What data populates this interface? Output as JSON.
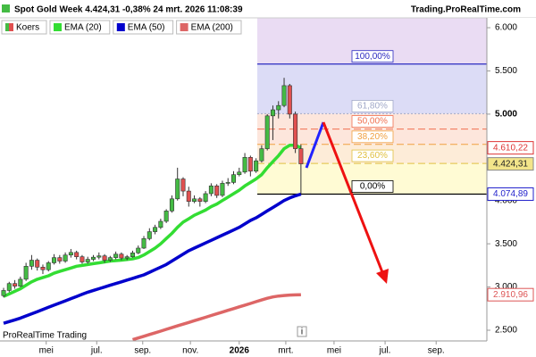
{
  "chart_data": {
    "type": "candlestick",
    "title": "Spot  Gold Week 4.424,31 -0,38% 24 mrt. 2026 11:08:39",
    "source": "Trading.ProRealTime.com",
    "watermark": "ProRealTime Trading",
    "info": "i",
    "xlim": [
      -0.64,
      86.14
    ],
    "xticks": [
      {
        "value": 7.6,
        "label": "mei"
      },
      {
        "value": 16.6,
        "label": "jul."
      },
      {
        "value": 24.8,
        "label": "sep."
      },
      {
        "value": 33.3,
        "label": "nov."
      },
      {
        "value": 42.0,
        "label": "2026"
      },
      {
        "value": 50.3,
        "label": "mrt."
      },
      {
        "value": 58.9,
        "label": "mei"
      },
      {
        "value": 68.0,
        "label": "jul."
      },
      {
        "value": 77.1,
        "label": "sep."
      }
    ],
    "ylim": [
      2376,
      6114
    ],
    "yticks": [
      {
        "value": 2500,
        "label": "2.500"
      },
      {
        "value": 3000,
        "label": "3.000"
      },
      {
        "value": 3500,
        "label": "3.500"
      },
      {
        "value": 4000,
        "label": "4.000"
      },
      {
        "value": 5000,
        "label": "5.000"
      },
      {
        "value": 5500,
        "label": "5.500"
      },
      {
        "value": 6000,
        "label": "6.000"
      }
    ],
    "price": {
      "name": "Koers",
      "up_color": "#44bb44",
      "down_color": "#e05050",
      "last": {
        "value": 4424.31,
        "label": "4.424,31"
      },
      "candles": [
        [
          2900,
          2990,
          2880,
          2960
        ],
        [
          2960,
          3060,
          2940,
          3040
        ],
        [
          3040,
          3080,
          2980,
          3010
        ],
        [
          3010,
          3120,
          3000,
          3090
        ],
        [
          3090,
          3280,
          3070,
          3240
        ],
        [
          3240,
          3370,
          3200,
          3310
        ],
        [
          3310,
          3330,
          3190,
          3230
        ],
        [
          3230,
          3260,
          3150,
          3200
        ],
        [
          3200,
          3300,
          3180,
          3280
        ],
        [
          3280,
          3380,
          3260,
          3340
        ],
        [
          3340,
          3370,
          3270,
          3300
        ],
        [
          3300,
          3400,
          3280,
          3370
        ],
        [
          3370,
          3440,
          3340,
          3400
        ],
        [
          3400,
          3420,
          3320,
          3350
        ],
        [
          3350,
          3370,
          3270,
          3290
        ],
        [
          3290,
          3350,
          3270,
          3320
        ],
        [
          3320,
          3370,
          3300,
          3345
        ],
        [
          3345,
          3400,
          3320,
          3360
        ],
        [
          3360,
          3380,
          3280,
          3310
        ],
        [
          3310,
          3360,
          3290,
          3340
        ],
        [
          3340,
          3410,
          3320,
          3380
        ],
        [
          3380,
          3400,
          3310,
          3335
        ],
        [
          3335,
          3370,
          3310,
          3350
        ],
        [
          3350,
          3420,
          3340,
          3395
        ],
        [
          3395,
          3480,
          3380,
          3450
        ],
        [
          3450,
          3590,
          3440,
          3560
        ],
        [
          3560,
          3680,
          3540,
          3640
        ],
        [
          3640,
          3720,
          3610,
          3690
        ],
        [
          3690,
          3790,
          3670,
          3760
        ],
        [
          3760,
          3900,
          3740,
          3880
        ],
        [
          3880,
          4060,
          3860,
          4020
        ],
        [
          4020,
          4380,
          4000,
          4250
        ],
        [
          4250,
          4270,
          4050,
          4110
        ],
        [
          4110,
          4160,
          3930,
          3990
        ],
        [
          3990,
          4060,
          3970,
          4020
        ],
        [
          4020,
          4040,
          3930,
          3990
        ],
        [
          3990,
          4110,
          3970,
          4080
        ],
        [
          4080,
          4200,
          4050,
          4170
        ],
        [
          4170,
          4190,
          4030,
          4060
        ],
        [
          4060,
          4230,
          4040,
          4200
        ],
        [
          4200,
          4260,
          4170,
          4210
        ],
        [
          4210,
          4340,
          4190,
          4300
        ],
        [
          4300,
          4380,
          4280,
          4330
        ],
        [
          4330,
          4550,
          4310,
          4500
        ],
        [
          4500,
          4520,
          4280,
          4340
        ],
        [
          4340,
          4490,
          4320,
          4460
        ],
        [
          4460,
          4640,
          4440,
          4600
        ],
        [
          4600,
          5000,
          4580,
          4980
        ],
        [
          4980,
          5100,
          4700,
          5050
        ],
        [
          5050,
          5150,
          4950,
          5100
        ],
        [
          5100,
          5420,
          5080,
          5330
        ],
        [
          5330,
          5350,
          4950,
          5000
        ],
        [
          5000,
          5030,
          4550,
          4600
        ],
        [
          4600,
          4650,
          4075,
          4424.31
        ]
      ]
    },
    "series": [
      {
        "name": "EMA (20)",
        "color": "#33dd33",
        "last": {
          "value": 4610.22,
          "label": "4.610,22"
        },
        "tag_color": "#dd3333",
        "values": [
          2890,
          2920,
          2950,
          2980,
          3020,
          3060,
          3090,
          3110,
          3130,
          3160,
          3180,
          3200,
          3220,
          3240,
          3250,
          3260,
          3270,
          3280,
          3290,
          3300,
          3305,
          3310,
          3318,
          3326,
          3340,
          3370,
          3410,
          3450,
          3500,
          3560,
          3620,
          3690,
          3750,
          3790,
          3830,
          3860,
          3890,
          3930,
          3960,
          4000,
          4040,
          4080,
          4120,
          4170,
          4210,
          4250,
          4300,
          4380,
          4450,
          4520,
          4600,
          4640,
          4640,
          4610.22
        ]
      },
      {
        "name": "EMA (50)",
        "color": "#0000cc",
        "last": {
          "value": 4074.89,
          "label": "4.074,89"
        },
        "tag_color": "#2222cc",
        "values": [
          2580,
          2600,
          2620,
          2640,
          2665,
          2690,
          2715,
          2740,
          2765,
          2790,
          2815,
          2840,
          2865,
          2890,
          2915,
          2940,
          2960,
          2980,
          3000,
          3020,
          3040,
          3060,
          3080,
          3100,
          3120,
          3140,
          3170,
          3200,
          3230,
          3260,
          3300,
          3340,
          3380,
          3420,
          3450,
          3480,
          3510,
          3540,
          3570,
          3600,
          3630,
          3660,
          3690,
          3730,
          3770,
          3800,
          3840,
          3880,
          3920,
          3960,
          4000,
          4030,
          4055,
          4074.89
        ]
      },
      {
        "name": "EMA (200)",
        "color": "#dd6666",
        "last": {
          "value": 2910.96,
          "label": "2.910,96"
        },
        "tag_color": "#dd5555",
        "values": [
          null,
          null,
          null,
          null,
          null,
          null,
          null,
          null,
          null,
          null,
          null,
          null,
          null,
          null,
          null,
          null,
          null,
          null,
          null,
          null,
          null,
          null,
          null,
          2390,
          2410,
          2430,
          2450,
          2470,
          2490,
          2510,
          2530,
          2550,
          2570,
          2590,
          2610,
          2630,
          2650,
          2670,
          2690,
          2710,
          2730,
          2750,
          2770,
          2790,
          2810,
          2830,
          2850,
          2870,
          2885,
          2895,
          2902,
          2907,
          2909,
          2910.96
        ]
      }
    ],
    "fibonacci": {
      "high": 5580,
      "low": 4074.89,
      "levels": [
        {
          "value": 100,
          "label": "100,00%",
          "color": "#2a2ac0"
        },
        {
          "value": 61.8,
          "label": "61,80%",
          "color": "#a0a8c8"
        },
        {
          "value": 50,
          "label": "50,00%",
          "color": "#f07050"
        },
        {
          "value": 38.2,
          "label": "38,20%",
          "color": "#f0a040"
        },
        {
          "value": 23.6,
          "label": "23,60%",
          "color": "#e0c040"
        },
        {
          "value": 0,
          "label": "0,00%",
          "color": "#000000"
        }
      ]
    }
  }
}
